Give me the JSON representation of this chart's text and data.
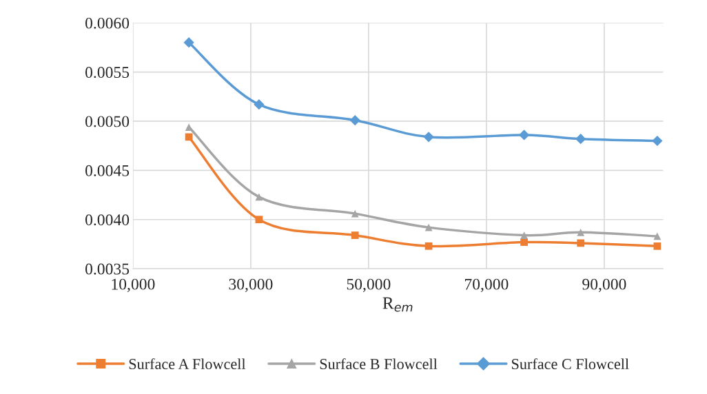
{
  "chart_data": {
    "type": "line",
    "xlabel": "R$_{em}$",
    "x": [
      19500,
      31400,
      47700,
      60200,
      76400,
      86000,
      99000
    ],
    "series": [
      {
        "name": "Surface A Flowcell",
        "color": "#ed7d31",
        "marker": "square",
        "values": [
          0.00484,
          0.004,
          0.00384,
          0.00373,
          0.00377,
          0.00376,
          0.00373
        ]
      },
      {
        "name": "Surface B Flowcell",
        "color": "#a5a5a5",
        "marker": "triangle",
        "values": [
          0.00494,
          0.00423,
          0.00406,
          0.00392,
          0.00384,
          0.00387,
          0.00383
        ]
      },
      {
        "name": "Surface C Flowcell",
        "color": "#5b9bd5",
        "marker": "diamond",
        "values": [
          0.0058,
          0.00517,
          0.00501,
          0.00484,
          0.00486,
          0.00482,
          0.0048
        ]
      }
    ],
    "xlim": [
      10000,
      100000
    ],
    "xticks": [
      {
        "value": 10000,
        "label": "10,000"
      },
      {
        "value": 30000,
        "label": "30,000"
      },
      {
        "value": 50000,
        "label": "50,000"
      },
      {
        "value": 70000,
        "label": "70,000"
      },
      {
        "value": 90000,
        "label": "90,000"
      }
    ],
    "ylim": [
      0.0035,
      0.006
    ],
    "yticks": [
      {
        "value": 0.0035,
        "label": "0.0035"
      },
      {
        "value": 0.004,
        "label": "0.0040"
      },
      {
        "value": 0.0045,
        "label": "0.0045"
      },
      {
        "value": 0.005,
        "label": "0.0050"
      },
      {
        "value": 0.0055,
        "label": "0.0055"
      },
      {
        "value": 0.006,
        "label": "0.0060"
      }
    ],
    "grid": true,
    "legend": "bottom",
    "line_style": "solid"
  }
}
